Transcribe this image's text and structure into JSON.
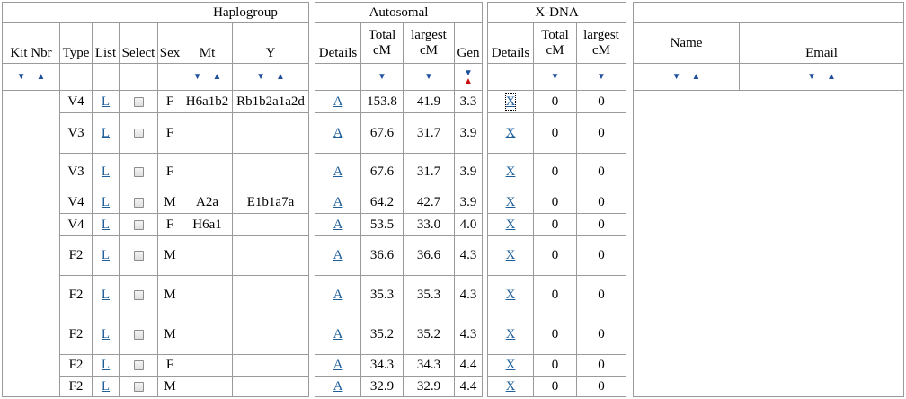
{
  "headers": {
    "group": {
      "haplogroup": "Haplogroup",
      "autosomal": "Autosomal",
      "xdna": "X-DNA"
    },
    "columns": {
      "kit_nbr": "Kit Nbr",
      "type": "Type",
      "list": "List",
      "select": "Select",
      "sex": "Sex",
      "mt": "Mt",
      "y": "Y",
      "auto_details": "Details",
      "auto_total_cm": "Total cM",
      "auto_largest_cm": "largest cM",
      "gen": "Gen",
      "x_details": "Details",
      "x_total_cm": "Total cM",
      "x_largest_cm": "largest cM",
      "name": "Name",
      "email": "Email"
    }
  },
  "sort_arrows": {
    "down": "▼",
    "up": "▲",
    "active_sort": "gen",
    "active_direction": "up"
  },
  "colors": {
    "link": "#1f5f99",
    "sort_arrow": "#1f4e9c",
    "active_sort_arrow": "#cc1111",
    "grid": "#9a9a9a"
  },
  "rows": [
    {
      "type": "V4",
      "list": "L",
      "sex": "F",
      "mt": "H6a1b2",
      "y": "Rb1b2a1a2d",
      "auto_details": "A",
      "total_cm": "153.8",
      "largest_cm": "41.9",
      "gen": "3.3",
      "x_details": "X",
      "x_total": "0",
      "x_largest": "0",
      "x_focused": true
    },
    {
      "type": "V3",
      "list": "L",
      "sex": "F",
      "mt": "",
      "y": "",
      "auto_details": "A",
      "total_cm": "67.6",
      "largest_cm": "31.7",
      "gen": "3.9",
      "x_details": "X",
      "x_total": "0",
      "x_largest": "0"
    },
    {
      "type": "V3",
      "list": "L",
      "sex": "F",
      "mt": "",
      "y": "",
      "auto_details": "A",
      "total_cm": "67.6",
      "largest_cm": "31.7",
      "gen": "3.9",
      "x_details": "X",
      "x_total": "0",
      "x_largest": "0"
    },
    {
      "type": "V4",
      "list": "L",
      "sex": "M",
      "mt": "A2a",
      "y": "E1b1a7a",
      "auto_details": "A",
      "total_cm": "64.2",
      "largest_cm": "42.7",
      "gen": "3.9",
      "x_details": "X",
      "x_total": "0",
      "x_largest": "0"
    },
    {
      "type": "V4",
      "list": "L",
      "sex": "F",
      "mt": "H6a1",
      "y": "",
      "auto_details": "A",
      "total_cm": "53.5",
      "largest_cm": "33.0",
      "gen": "4.0",
      "x_details": "X",
      "x_total": "0",
      "x_largest": "0"
    },
    {
      "type": "F2",
      "list": "L",
      "sex": "M",
      "mt": "",
      "y": "",
      "auto_details": "A",
      "total_cm": "36.6",
      "largest_cm": "36.6",
      "gen": "4.3",
      "x_details": "X",
      "x_total": "0",
      "x_largest": "0"
    },
    {
      "type": "F2",
      "list": "L",
      "sex": "M",
      "mt": "",
      "y": "",
      "auto_details": "A",
      "total_cm": "35.3",
      "largest_cm": "35.3",
      "gen": "4.3",
      "x_details": "X",
      "x_total": "0",
      "x_largest": "0"
    },
    {
      "type": "F2",
      "list": "L",
      "sex": "M",
      "mt": "",
      "y": "",
      "auto_details": "A",
      "total_cm": "35.2",
      "largest_cm": "35.2",
      "gen": "4.3",
      "x_details": "X",
      "x_total": "0",
      "x_largest": "0"
    },
    {
      "type": "F2",
      "list": "L",
      "sex": "F",
      "mt": "",
      "y": "",
      "auto_details": "A",
      "total_cm": "34.3",
      "largest_cm": "34.3",
      "gen": "4.4",
      "x_details": "X",
      "x_total": "0",
      "x_largest": "0"
    },
    {
      "type": "F2",
      "list": "L",
      "sex": "M",
      "mt": "",
      "y": "",
      "auto_details": "A",
      "total_cm": "32.9",
      "largest_cm": "32.9",
      "gen": "4.4",
      "x_details": "X",
      "x_total": "0",
      "x_largest": "0"
    }
  ]
}
